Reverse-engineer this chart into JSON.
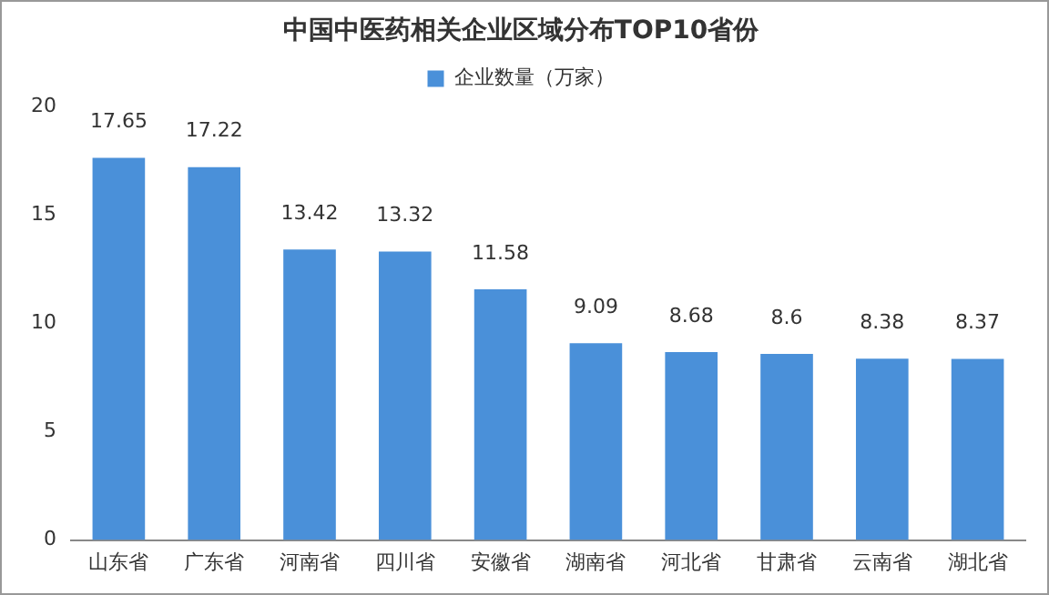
{
  "chart_data": {
    "type": "bar",
    "title": "中国中医药相关企业区域分布TOP10省份",
    "categories": [
      "山东省",
      "广东省",
      "河南省",
      "四川省",
      "安徽省",
      "湖南省",
      "河北省",
      "甘肃省",
      "云南省",
      "湖北省"
    ],
    "series": [
      {
        "name": "企业数量（万家）",
        "color": "#4a90d9",
        "values": [
          17.65,
          17.22,
          13.42,
          13.32,
          11.58,
          9.09,
          8.68,
          8.6,
          8.38,
          8.37
        ]
      }
    ],
    "ylim": [
      0,
      20
    ],
    "yticks": [
      0,
      5,
      10,
      15,
      20
    ],
    "grid": false,
    "legend": "top",
    "data_labels": true
  }
}
